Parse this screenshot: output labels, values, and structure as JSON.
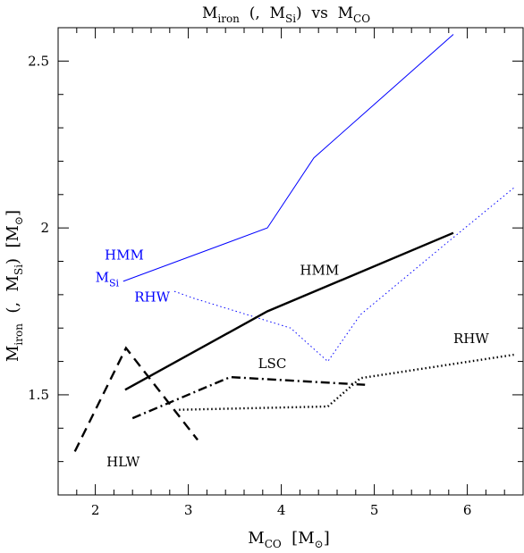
{
  "chart_data": {
    "type": "line",
    "title": {
      "main": "M",
      "sub1": "iron",
      "mid": "  (,  M",
      "sub2": "Si",
      "mid2": ")  vs  M",
      "sub3": "CO"
    },
    "xlabel": {
      "main": "M",
      "sub": "CO",
      "unit_open": "  [M",
      "unit_sym": "⊙",
      "unit_close": "]"
    },
    "ylabel": {
      "main": "M",
      "sub1": "iron",
      "mid": "  (,  M",
      "sub2": "Si",
      "mid2": ")  [M",
      "unit_sym": "⊙",
      "unit_close": "]"
    },
    "xlim": [
      1.6,
      6.6
    ],
    "ylim": [
      1.2,
      2.6
    ],
    "xticks": [
      "2",
      "3",
      "4",
      "5",
      "6"
    ],
    "yticks": [
      "1.5",
      "2",
      "2.5"
    ],
    "series": [
      {
        "name": "HMM",
        "color": "#0000ff",
        "style": "solid",
        "weight": "thin",
        "x": [
          2.3,
          3.85,
          4.35,
          5.85
        ],
        "y": [
          1.84,
          2.0,
          2.21,
          2.58
        ]
      },
      {
        "name": "RHW",
        "color": "#0000ff",
        "style": "dotted",
        "weight": "thin",
        "x": [
          2.85,
          3.05,
          4.1,
          4.5,
          4.85,
          5.8,
          6.5
        ],
        "y": [
          1.81,
          1.79,
          1.7,
          1.6,
          1.74,
          1.96,
          2.12
        ]
      },
      {
        "name": "HMM",
        "color": "#000000",
        "style": "solid",
        "weight": "thick",
        "x": [
          2.32,
          3.85,
          5.85
        ],
        "y": [
          1.515,
          1.75,
          1.985
        ]
      },
      {
        "name": "LSC",
        "color": "#000000",
        "style": "dashdot",
        "weight": "thick",
        "x": [
          2.4,
          3.45,
          4.9
        ],
        "y": [
          1.43,
          1.553,
          1.53
        ]
      },
      {
        "name": "RHW",
        "color": "#000000",
        "style": "dotted",
        "weight": "thick",
        "x": [
          2.9,
          4.5,
          4.85,
          6.5
        ],
        "y": [
          1.455,
          1.465,
          1.55,
          1.62
        ]
      },
      {
        "name": "HLW",
        "color": "#000000",
        "style": "dashed",
        "weight": "thick",
        "x": [
          1.78,
          2.33,
          3.1
        ],
        "y": [
          1.33,
          1.64,
          1.365
        ]
      }
    ],
    "annotations": [
      {
        "text": "HMM",
        "color": "#0000ff",
        "x": 2.1,
        "y": 1.905
      },
      {
        "text": "M",
        "sub": "Si",
        "color": "#0000ff",
        "x": 2.0,
        "y": 1.838
      },
      {
        "text": "RHW",
        "color": "#0000ff",
        "x": 2.42,
        "y": 1.78
      },
      {
        "text": "HMM",
        "color": "#000000",
        "x": 4.2,
        "y": 1.86
      },
      {
        "text": "LSC",
        "color": "#000000",
        "x": 3.75,
        "y": 1.58
      },
      {
        "text": "RHW",
        "color": "#000000",
        "x": 5.85,
        "y": 1.655
      },
      {
        "text": "HLW",
        "color": "#000000",
        "x": 2.12,
        "y": 1.285
      }
    ],
    "grid": false,
    "legend": "none"
  }
}
